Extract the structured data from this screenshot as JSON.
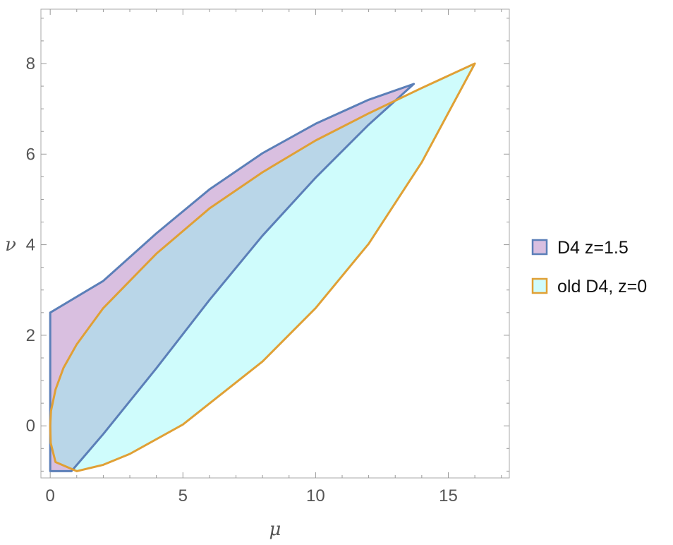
{
  "chart_data": {
    "type": "area",
    "title": "",
    "xlabel": "μ",
    "ylabel": "ν",
    "xlim": [
      -0.35,
      17.3
    ],
    "ylim": [
      -1.15,
      9.2
    ],
    "x_ticks": [
      0,
      5,
      10,
      15
    ],
    "y_ticks": [
      0,
      2,
      4,
      6,
      8
    ],
    "x_tick_labels": [
      "0",
      "5",
      "10",
      "15"
    ],
    "y_tick_labels": [
      "0",
      "2",
      "4",
      "6",
      "8"
    ],
    "grid": false,
    "legend_position": "right",
    "series": [
      {
        "name": "D4 z=1.5",
        "stroke": "#5b7fb8",
        "fill": "#d9bfe0",
        "boundary": [
          [
            0,
            -1
          ],
          [
            0.8,
            -1
          ],
          [
            2,
            -0.18
          ],
          [
            4,
            1.27
          ],
          [
            6,
            2.78
          ],
          [
            8,
            4.2
          ],
          [
            10,
            5.48
          ],
          [
            12,
            6.65
          ],
          [
            13.7,
            7.55
          ],
          [
            12,
            7.2
          ],
          [
            10,
            6.67
          ],
          [
            8,
            6.02
          ],
          [
            6,
            5.22
          ],
          [
            4,
            4.25
          ],
          [
            2,
            3.2
          ],
          [
            0,
            2.5
          ],
          [
            0,
            -1
          ]
        ]
      },
      {
        "name": "old D4, z=0",
        "stroke": "#e0a035",
        "fill": "#cffcfc",
        "boundary": [
          [
            0,
            0
          ],
          [
            0.02,
            -0.38
          ],
          [
            0.2,
            -0.8
          ],
          [
            1,
            -1
          ],
          [
            2,
            -0.86
          ],
          [
            3,
            -0.62
          ],
          [
            5,
            0.03
          ],
          [
            8,
            1.42
          ],
          [
            10,
            2.6
          ],
          [
            12,
            4.02
          ],
          [
            14,
            5.82
          ],
          [
            16,
            8
          ],
          [
            14,
            7.46
          ],
          [
            12,
            6.9
          ],
          [
            10,
            6.3
          ],
          [
            8,
            5.6
          ],
          [
            6,
            4.8
          ],
          [
            4,
            3.8
          ],
          [
            3,
            3.2
          ],
          [
            2,
            2.6
          ],
          [
            1,
            1.8
          ],
          [
            0.5,
            1.28
          ],
          [
            0.2,
            0.8
          ],
          [
            0.03,
            0.33
          ],
          [
            0,
            0
          ]
        ]
      }
    ],
    "overlap_fill": "#b9d6e8"
  }
}
